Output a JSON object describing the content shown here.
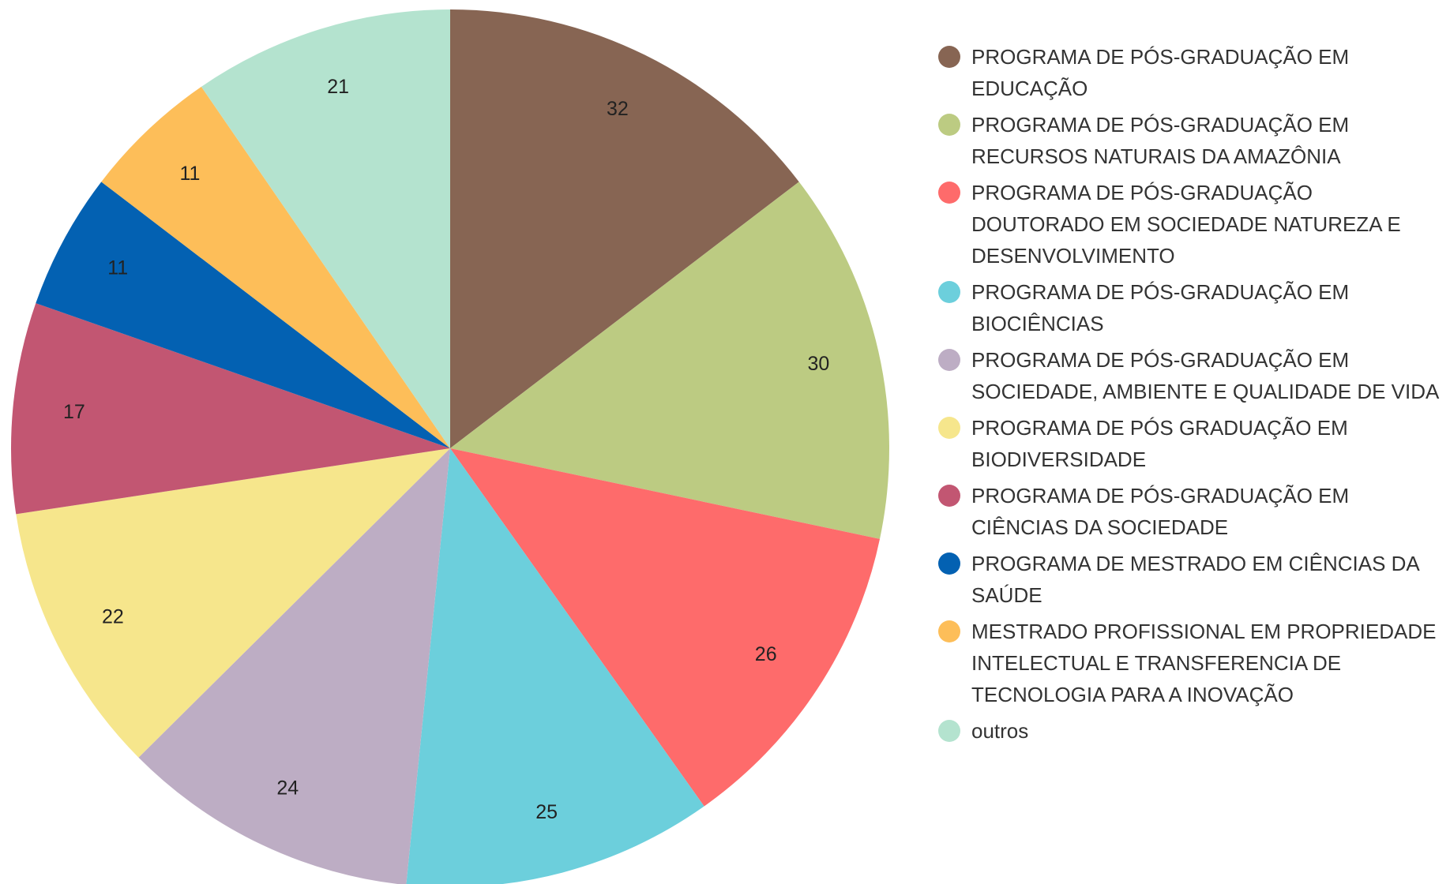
{
  "chart_data": {
    "type": "pie",
    "categories": [
      "PROGRAMA DE PÓS-GRADUAÇÃO EM EDUCAÇÃO",
      "PROGRAMA DE PÓS-GRADUAÇÃO EM RECURSOS NATURAIS DA AMAZÔNIA",
      "PROGRAMA DE PÓS-GRADUAÇÃO DOUTORADO EM SOCIEDADE NATUREZA E DESENVOLVIMENTO",
      "PROGRAMA DE PÓS-GRADUAÇÃO EM BIOCIÊNCIAS",
      "PROGRAMA DE PÓS-GRADUAÇÃO EM SOCIEDADE, AMBIENTE E QUALIDADE DE VIDA",
      "PROGRAMA DE PÓS GRADUAÇÃO EM BIODIVERSIDADE",
      "PROGRAMA DE PÓS-GRADUAÇÃO EM CIÊNCIAS DA SOCIEDADE",
      "PROGRAMA DE MESTRADO EM CIÊNCIAS DA SAÚDE",
      "MESTRADO PROFISSIONAL EM PROPRIEDADE INTELECTUAL E TRANSFERENCIA DE TECNOLOGIA PARA A INOVAÇÃO",
      "outros"
    ],
    "values": [
      32,
      30,
      26,
      25,
      24,
      22,
      17,
      11,
      11,
      21
    ],
    "colors": [
      "#876553",
      "#bccb82",
      "#fe6b6b",
      "#6ccfdc",
      "#bdadc4",
      "#f6e68c",
      "#c25672",
      "#0361b2",
      "#fdbe59",
      "#b4e3cf"
    ],
    "legend": "right"
  }
}
